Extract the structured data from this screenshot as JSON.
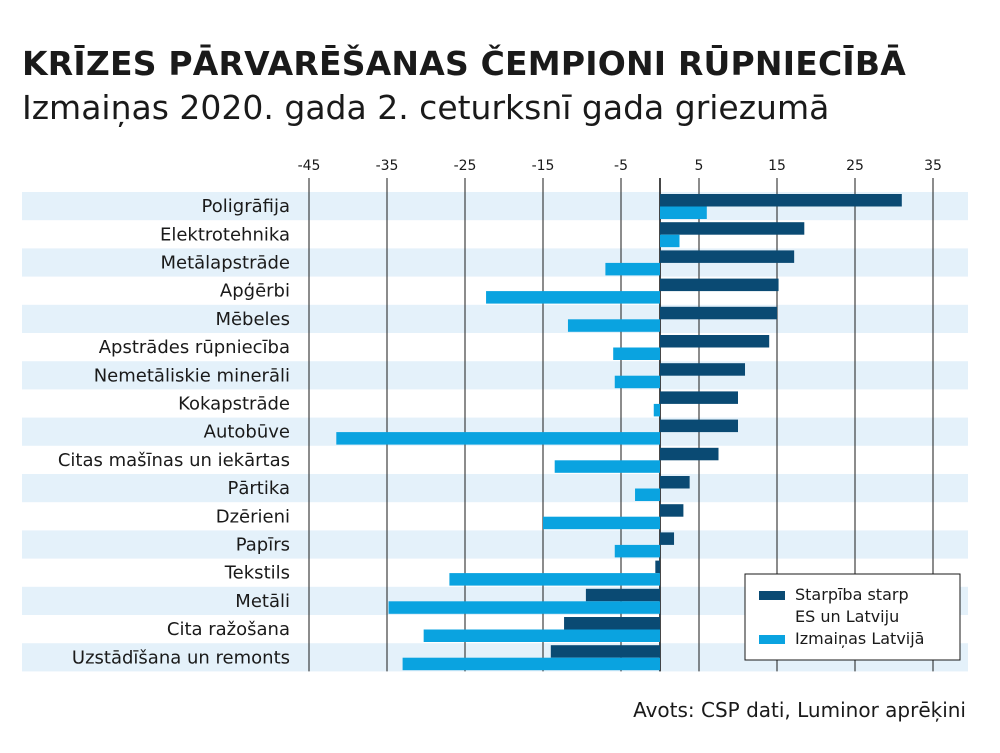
{
  "title": "KRĪZES PĀRVARĒŠANAS ČEMPIONI RŪPNIECĪBĀ",
  "subtitle": "Izmaiņas 2020. gada 2. ceturksnī gada griezumā",
  "source": "Avots: CSP dati, Luminor aprēķini",
  "colors": {
    "dark": "#0a4a73",
    "light": "#0aa3e0",
    "band": "#e4f1fa"
  },
  "chart_data": {
    "type": "bar",
    "orientation": "horizontal",
    "categories": [
      "Poligrāfija",
      "Elektrotehnika",
      "Metālapstrāde",
      "Apģērbi",
      "Mēbeles",
      "Apstrādes rūpniecība",
      "Nemetāliskie minerāli",
      "Kokapstrāde",
      "Autobūve",
      "Citas mašīnas un iekārtas",
      "Pārtika",
      "Dzērieni",
      "Papīrs",
      "Tekstils",
      "Metāli",
      "Cita ražošana",
      "Uzstādīšana un remonts"
    ],
    "series": [
      {
        "name": "Starpība starp ES un Latviju",
        "color": "#0a4a73",
        "values": [
          31,
          18.5,
          17.2,
          15.2,
          15,
          14,
          10.9,
          10,
          10,
          7.5,
          3.8,
          3,
          1.8,
          -0.6,
          -9.5,
          -12.3,
          -14
        ]
      },
      {
        "name": "Izmaiņas Latvijā",
        "color": "#0aa3e0",
        "values": [
          6,
          2.5,
          -7,
          -22.3,
          -11.8,
          -6,
          -5.8,
          -0.8,
          -41.5,
          -13.5,
          -3.2,
          -15,
          -5.8,
          -27,
          -34.8,
          -30.3,
          -33
        ]
      }
    ],
    "xticks": [
      -45,
      -35,
      -25,
      -15,
      -5,
      5,
      15,
      25,
      35
    ],
    "xlim": [
      -48,
      40
    ],
    "legend": {
      "position": "bottom-right",
      "entries": [
        "Starpība starp ES un Latviju",
        "Izmaiņas Latvijā"
      ]
    }
  }
}
